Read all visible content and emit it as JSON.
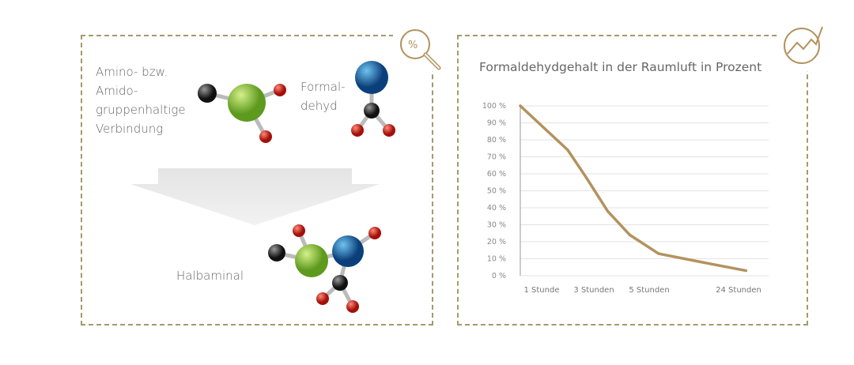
{
  "left_panel": {
    "reactant1_label": [
      "Amino- bzw.",
      "Amido-",
      "gruppenhaltige",
      "Verbindung"
    ],
    "reactant2_label": [
      "Formal-",
      "dehyd"
    ],
    "product_label": "Halbaminal",
    "icon": "magnifier-bacteria-icon"
  },
  "right_panel": {
    "icon": "trend-chart-icon"
  },
  "colors": {
    "accent": "#b3925e",
    "border": "#a59a6a",
    "green": "#8cc63f",
    "blue": "#1a6fb0",
    "red": "#d62a22",
    "dark": "#333333"
  },
  "chart_data": {
    "type": "line",
    "title": "Formaldehydgehalt in der Raumluft in Prozent",
    "xlabel": "",
    "ylabel": "",
    "ylim": [
      0,
      100
    ],
    "yticks": [
      "0 %",
      "10 %",
      "20 %",
      "30 %",
      "40 %",
      "50 %",
      "60 %",
      "70 %",
      "80 %",
      "90 %",
      "100 %"
    ],
    "xticks": [
      {
        "label": "1 Stunde",
        "hours": 1
      },
      {
        "label": "3 Stunden",
        "hours": 3
      },
      {
        "label": "5 Stunden",
        "hours": 5
      },
      {
        "label": "24 Stunden",
        "hours": 24
      }
    ],
    "grid": true,
    "series": [
      {
        "x": [
          0,
          2,
          2.7,
          3.5,
          4.3,
          7,
          18,
          26
        ],
        "y": [
          100,
          74,
          58,
          38,
          24,
          13,
          7,
          3
        ],
        "color": "#b3925e"
      }
    ]
  }
}
